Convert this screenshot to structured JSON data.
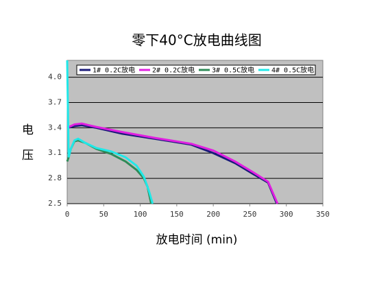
{
  "chart_data": {
    "type": "line",
    "title": "零下40°C放电曲线图",
    "xlabel": "放电时间 (min)",
    "ylabel": "电压",
    "xlim": [
      0,
      350
    ],
    "xticks": [
      0,
      50,
      100,
      150,
      200,
      250,
      300,
      350
    ],
    "ylim": [
      2.5,
      4.2
    ],
    "yticks": [
      2.5,
      2.8,
      3.1,
      3.4,
      3.7,
      {
        "value": 4,
        "label": "4.0"
      }
    ],
    "grid": true,
    "legend": "top",
    "series": [
      {
        "name": "1# 0.2C放电",
        "color": "#1a1a7a",
        "x": [
          0,
          10,
          20,
          40,
          75,
          120,
          170,
          200,
          230,
          255,
          275,
          287
        ],
        "values": [
          3.4,
          3.42,
          3.43,
          3.4,
          3.33,
          3.27,
          3.2,
          3.1,
          2.98,
          2.85,
          2.75,
          2.5
        ]
      },
      {
        "name": "2# 0.2C放电",
        "color": "#e020e0",
        "x": [
          0,
          10,
          20,
          40,
          75,
          120,
          170,
          200,
          230,
          255,
          275,
          288
        ],
        "values": [
          3.4,
          3.44,
          3.45,
          3.41,
          3.35,
          3.28,
          3.21,
          3.13,
          3.0,
          2.87,
          2.76,
          2.5
        ]
      },
      {
        "name": "3# 0.5C放电",
        "color": "#2e8b57",
        "x": [
          0,
          2,
          5,
          10,
          15,
          25,
          40,
          60,
          80,
          95,
          105,
          110,
          115
        ],
        "values": [
          3.0,
          3.05,
          3.15,
          3.24,
          3.25,
          3.22,
          3.15,
          3.09,
          3.0,
          2.9,
          2.8,
          2.7,
          2.5
        ]
      },
      {
        "name": "4# 0.5C放电",
        "color": "#20e8e8",
        "x": [
          0,
          2,
          5,
          10,
          15,
          25,
          40,
          60,
          80,
          95,
          105,
          112,
          117
        ],
        "values": [
          4.2,
          3.05,
          3.15,
          3.25,
          3.27,
          3.22,
          3.16,
          3.12,
          3.05,
          2.95,
          2.82,
          2.65,
          2.5
        ]
      }
    ]
  }
}
